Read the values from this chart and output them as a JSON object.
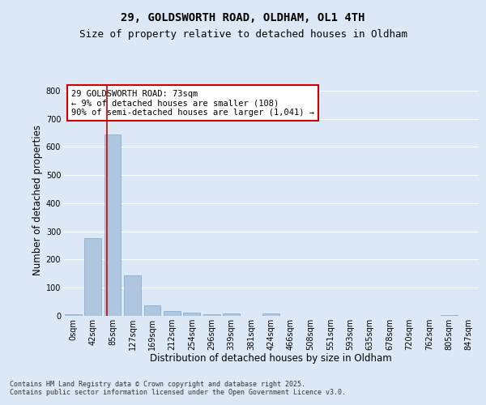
{
  "title_line1": "29, GOLDSWORTH ROAD, OLDHAM, OL1 4TH",
  "title_line2": "Size of property relative to detached houses in Oldham",
  "xlabel": "Distribution of detached houses by size in Oldham",
  "ylabel": "Number of detached properties",
  "footer": "Contains HM Land Registry data © Crown copyright and database right 2025.\nContains public sector information licensed under the Open Government Licence v3.0.",
  "bar_labels": [
    "0sqm",
    "42sqm",
    "85sqm",
    "127sqm",
    "169sqm",
    "212sqm",
    "254sqm",
    "296sqm",
    "339sqm",
    "381sqm",
    "424sqm",
    "466sqm",
    "508sqm",
    "551sqm",
    "593sqm",
    "635sqm",
    "678sqm",
    "720sqm",
    "762sqm",
    "805sqm",
    "847sqm"
  ],
  "bar_values": [
    7,
    277,
    645,
    143,
    36,
    18,
    11,
    6,
    10,
    0,
    8,
    0,
    0,
    0,
    0,
    0,
    0,
    0,
    0,
    3,
    0
  ],
  "bar_color": "#aec6de",
  "bar_edge_color": "#7aaac8",
  "vline_color": "#cc0000",
  "annotation_text": "29 GOLDSWORTH ROAD: 73sqm\n← 9% of detached houses are smaller (108)\n90% of semi-detached houses are larger (1,041) →",
  "annotation_box_color": "white",
  "annotation_box_edge_color": "#cc0000",
  "ylim": [
    0,
    820
  ],
  "yticks": [
    0,
    100,
    200,
    300,
    400,
    500,
    600,
    700,
    800
  ],
  "bg_color": "#dce8f5",
  "plot_bg_color": "#dce8f5",
  "grid_color": "white",
  "title_fontsize": 10,
  "subtitle_fontsize": 9,
  "axis_label_fontsize": 8.5,
  "tick_fontsize": 7,
  "annotation_fontsize": 7.5,
  "footer_fontsize": 6
}
